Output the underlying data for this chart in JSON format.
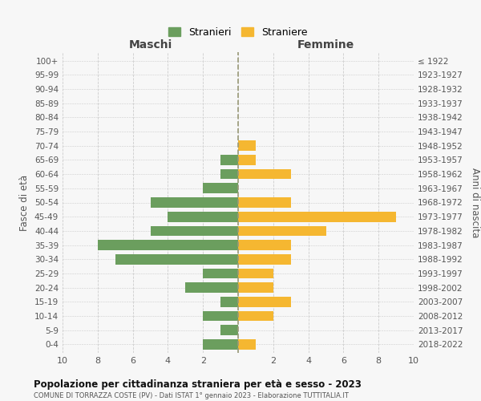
{
  "age_groups": [
    "0-4",
    "5-9",
    "10-14",
    "15-19",
    "20-24",
    "25-29",
    "30-34",
    "35-39",
    "40-44",
    "45-49",
    "50-54",
    "55-59",
    "60-64",
    "65-69",
    "70-74",
    "75-79",
    "80-84",
    "85-89",
    "90-94",
    "95-99",
    "100+"
  ],
  "birth_years": [
    "2018-2022",
    "2013-2017",
    "2008-2012",
    "2003-2007",
    "1998-2002",
    "1993-1997",
    "1988-1992",
    "1983-1987",
    "1978-1982",
    "1973-1977",
    "1968-1972",
    "1963-1967",
    "1958-1962",
    "1953-1957",
    "1948-1952",
    "1943-1947",
    "1938-1942",
    "1933-1937",
    "1928-1932",
    "1923-1927",
    "≤ 1922"
  ],
  "stranieri": [
    2,
    1,
    2,
    1,
    3,
    2,
    7,
    8,
    5,
    4,
    5,
    2,
    1,
    1,
    0,
    0,
    0,
    0,
    0,
    0,
    0
  ],
  "straniere": [
    1,
    0,
    2,
    3,
    2,
    2,
    3,
    3,
    5,
    9,
    3,
    0,
    3,
    1,
    1,
    0,
    0,
    0,
    0,
    0,
    0
  ],
  "color_stranieri": "#6b9e5e",
  "color_straniere": "#f5b731",
  "xlabel_left": "Maschi",
  "xlabel_right": "Femmine",
  "ylabel_left": "Fasce di età",
  "ylabel_right": "Anni di nascita",
  "xlim": 10,
  "title": "Popolazione per cittadinanza straniera per età e sesso - 2023",
  "subtitle": "COMUNE DI TORRAZZA COSTE (PV) - Dati ISTAT 1° gennaio 2023 - Elaborazione TUTTITALIA.IT",
  "legend_stranieri": "Stranieri",
  "legend_straniere": "Straniere",
  "bg_color": "#f7f7f7",
  "grid_color": "#cccccc",
  "dashed_line_color": "#999977"
}
